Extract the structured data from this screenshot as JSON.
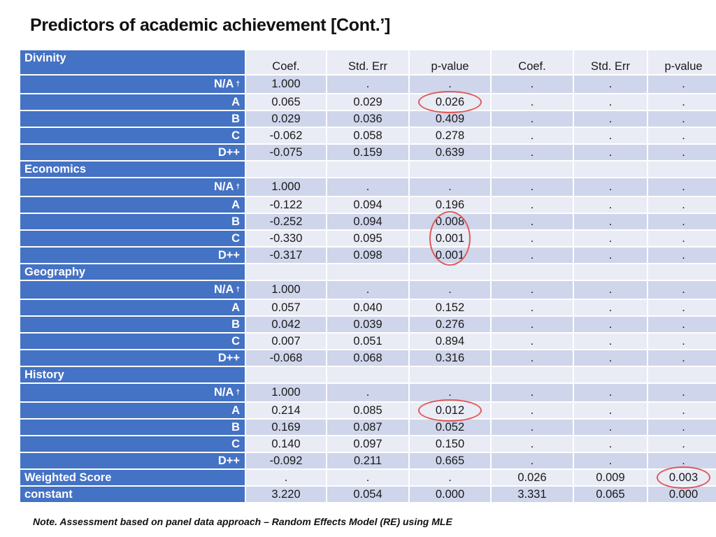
{
  "title": "Predictors of academic achievement [Cont.’]",
  "note": "Note. Assessment based on panel data approach – Random Effects Model (RE) using MLE",
  "table": {
    "corner_label": "Divinity",
    "headers": [
      "Coef.",
      "Std. Err",
      "p-value",
      "Coef.",
      "Std. Err",
      "p-value"
    ],
    "rows": [
      {
        "label": "N/A",
        "sup": "†",
        "type": "item",
        "cells": [
          "1.000",
          ".",
          ".",
          ".",
          ".",
          "."
        ]
      },
      {
        "label": "A",
        "type": "item",
        "cells": [
          "0.065",
          "0.029",
          "0.026",
          ".",
          ".",
          "."
        ]
      },
      {
        "label": "B",
        "type": "item",
        "cells": [
          "0.029",
          "0.036",
          "0.409",
          ".",
          ".",
          "."
        ]
      },
      {
        "label": "C",
        "type": "item",
        "cells": [
          "-0.062",
          "0.058",
          "0.278",
          ".",
          ".",
          "."
        ]
      },
      {
        "label": "D++",
        "type": "item",
        "cells": [
          "-0.075",
          "0.159",
          "0.639",
          ".",
          ".",
          "."
        ]
      },
      {
        "label": "Economics",
        "type": "section",
        "cells": [
          "",
          "",
          "",
          "",
          "",
          ""
        ]
      },
      {
        "label": "N/A",
        "sup": "†",
        "type": "item",
        "cells": [
          "1.000",
          ".",
          ".",
          ".",
          ".",
          "."
        ]
      },
      {
        "label": "A",
        "type": "item",
        "cells": [
          "-0.122",
          "0.094",
          "0.196",
          ".",
          ".",
          "."
        ]
      },
      {
        "label": "B",
        "type": "item",
        "cells": [
          "-0.252",
          "0.094",
          "0.008",
          ".",
          ".",
          "."
        ]
      },
      {
        "label": "C",
        "type": "item",
        "cells": [
          "-0.330",
          "0.095",
          "0.001",
          ".",
          ".",
          "."
        ]
      },
      {
        "label": "D++",
        "type": "item",
        "cells": [
          "-0.317",
          "0.098",
          "0.001",
          ".",
          ".",
          "."
        ]
      },
      {
        "label": "Geography",
        "type": "section",
        "cells": [
          "",
          "",
          "",
          "",
          "",
          ""
        ]
      },
      {
        "label": "N/A",
        "sup": "†",
        "type": "item",
        "cells": [
          "1.000",
          ".",
          ".",
          ".",
          ".",
          "."
        ]
      },
      {
        "label": "A",
        "type": "item",
        "cells": [
          "0.057",
          "0.040",
          "0.152",
          ".",
          ".",
          "."
        ]
      },
      {
        "label": "B",
        "type": "item",
        "cells": [
          "0.042",
          "0.039",
          "0.276",
          ".",
          ".",
          "."
        ]
      },
      {
        "label": "C",
        "type": "item",
        "cells": [
          "0.007",
          "0.051",
          "0.894",
          ".",
          ".",
          "."
        ]
      },
      {
        "label": "D++",
        "type": "item",
        "cells": [
          "-0.068",
          "0.068",
          "0.316",
          ".",
          ".",
          "."
        ]
      },
      {
        "label": "History",
        "type": "section",
        "cells": [
          "",
          "",
          "",
          "",
          "",
          ""
        ]
      },
      {
        "label": "N/A",
        "sup": "†",
        "type": "item",
        "cells": [
          "1.000",
          ".",
          ".",
          ".",
          ".",
          "."
        ]
      },
      {
        "label": "A",
        "type": "item",
        "cells": [
          "0.214",
          "0.085",
          "0.012",
          ".",
          ".",
          "."
        ]
      },
      {
        "label": "B",
        "type": "item",
        "cells": [
          "0.169",
          "0.087",
          "0.052",
          ".",
          ".",
          "."
        ]
      },
      {
        "label": "C",
        "type": "item",
        "cells": [
          "0.140",
          "0.097",
          "0.150",
          ".",
          ".",
          "."
        ]
      },
      {
        "label": "D++",
        "type": "item",
        "cells": [
          "-0.092",
          "0.211",
          "0.665",
          ".",
          ".",
          "."
        ]
      },
      {
        "label": "Weighted Score",
        "type": "section",
        "cells": [
          ".",
          ".",
          ".",
          "0.026",
          "0.009",
          "0.003"
        ]
      },
      {
        "label": "constant",
        "type": "section",
        "cells": [
          "3.220",
          "0.054",
          "0.000",
          "3.331",
          "0.065",
          "0.000"
        ]
      }
    ]
  },
  "colors": {
    "label_blue": "#4472c4",
    "band_dark": "#cfd5ea",
    "band_light": "#e9ebf5",
    "highlight_circle": "#e05a5a"
  }
}
